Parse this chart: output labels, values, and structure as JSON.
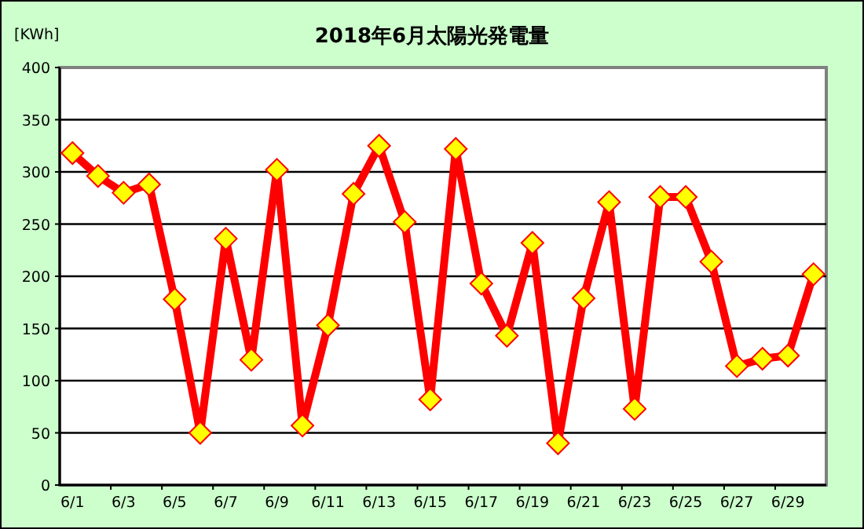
{
  "chart_data": {
    "type": "line",
    "title": "2018年6月太陽光発電量",
    "ylabel": "[KWh]",
    "categories": [
      "6/1",
      null,
      "6/3",
      null,
      "6/5",
      null,
      "6/7",
      null,
      "6/9",
      null,
      "6/11",
      null,
      "6/13",
      null,
      "6/15",
      null,
      "6/17",
      null,
      "6/19",
      null,
      "6/21",
      null,
      "6/23",
      null,
      "6/25",
      null,
      "6/27",
      null,
      "6/29",
      null
    ],
    "series": [
      {
        "color": "#ff0000",
        "values": [
          318,
          296,
          280,
          288,
          178,
          50,
          236,
          120,
          302,
          57,
          153,
          279,
          325,
          252,
          82,
          322,
          193,
          143,
          232,
          40,
          179,
          271,
          73,
          276,
          276,
          214,
          114,
          121,
          124,
          202
        ]
      }
    ],
    "ylim": [
      0,
      400
    ],
    "yticks": [
      0,
      50,
      100,
      150,
      200,
      250,
      300,
      350,
      400
    ],
    "grid": "y",
    "marker": "diamond",
    "line_style": "solid"
  }
}
